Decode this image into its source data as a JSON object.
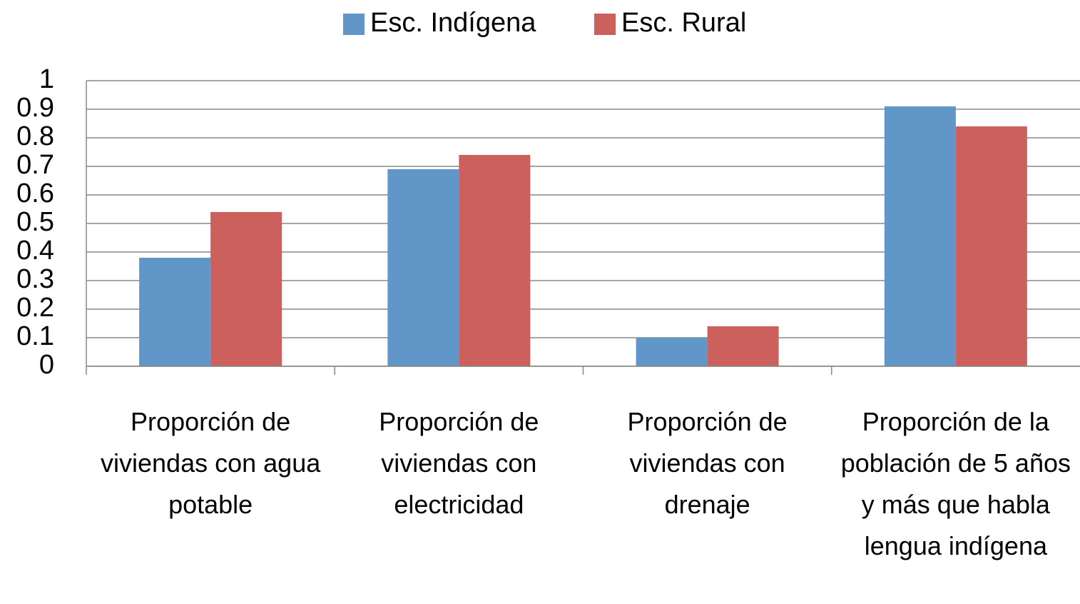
{
  "chart_data": {
    "type": "bar",
    "categories": [
      "Proporción de viviendas con agua potable",
      "Proporción de viviendas con electricidad",
      "Proporción de viviendas con drenaje",
      "Proporción de la población de 5 años y más que habla lengua indígena"
    ],
    "series": [
      {
        "name": "Esc. Indígena",
        "color": "#6096c8",
        "values": [
          0.38,
          0.69,
          0.1,
          0.91
        ]
      },
      {
        "name": "Esc. Rural",
        "color": "#cc605c",
        "values": [
          0.54,
          0.74,
          0.14,
          0.84
        ]
      }
    ],
    "ylim": [
      0,
      1
    ],
    "yticks": [
      0,
      0.1,
      0.2,
      0.3,
      0.4,
      0.5,
      0.6,
      0.7,
      0.8,
      0.9,
      1
    ],
    "grid": true,
    "legend": "top"
  }
}
